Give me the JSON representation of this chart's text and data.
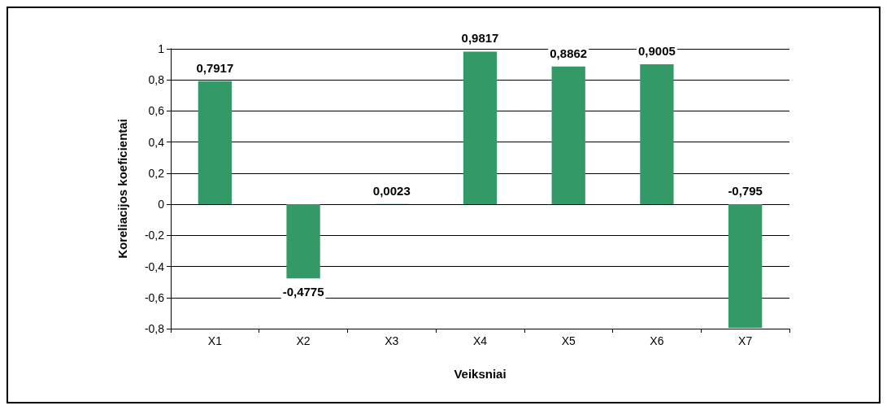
{
  "chart_data": {
    "type": "bar",
    "xlabel": "Veiksniai",
    "ylabel": "Koreliacijos koeficientai",
    "categories": [
      "X1",
      "X2",
      "X3",
      "X4",
      "X5",
      "X6",
      "X7"
    ],
    "values": [
      0.7917,
      -0.4775,
      0.0023,
      0.9817,
      0.8862,
      0.9005,
      -0.795
    ],
    "value_labels": [
      "0,7917",
      "-0,4775",
      "0,0023",
      "0,9817",
      "0,8862",
      "0,9005",
      "-0,795"
    ],
    "color": "#339966",
    "ylim": [
      -0.8,
      1
    ],
    "yticks": [
      {
        "value": -0.8,
        "label": "-0,8"
      },
      {
        "value": -0.6,
        "label": "-0,6"
      },
      {
        "value": -0.4,
        "label": "-0,4"
      },
      {
        "value": -0.2,
        "label": "-0,2"
      },
      0,
      {
        "value": 0.2,
        "label": "0,2"
      },
      {
        "value": 0.4,
        "label": "0,4"
      },
      {
        "value": 0.6,
        "label": "0,6"
      },
      {
        "value": 0.8,
        "label": "0,8"
      },
      1
    ],
    "grid": "y"
  }
}
